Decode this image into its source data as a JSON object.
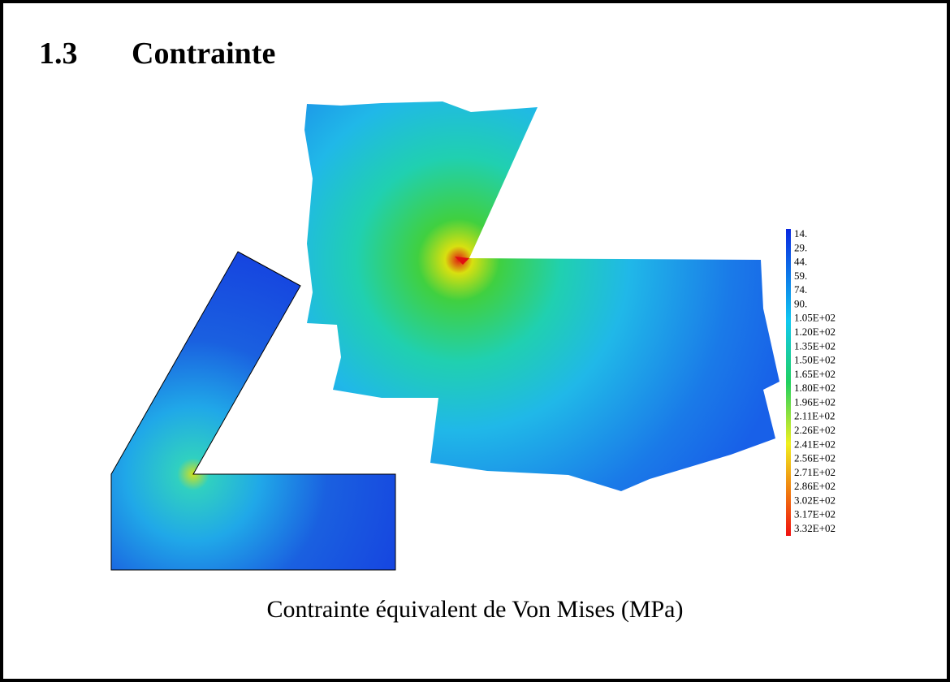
{
  "header": {
    "number": "1.3",
    "title": "Contrainte"
  },
  "figure": {
    "colorbar": {
      "labels": [
        "14.",
        "29.",
        "44.",
        "59.",
        "74.",
        "90.",
        "1.05E+02",
        "1.20E+02",
        "1.35E+02",
        "1.50E+02",
        "1.65E+02",
        "1.80E+02",
        "1.96E+02",
        "2.11E+02",
        "2.26E+02",
        "2.41E+02",
        "2.56E+02",
        "2.71E+02",
        "2.86E+02",
        "3.02E+02",
        "3.17E+02",
        "3.32E+02"
      ]
    },
    "caption": "Contrainte équivalent de Von Mises (MPa)"
  }
}
